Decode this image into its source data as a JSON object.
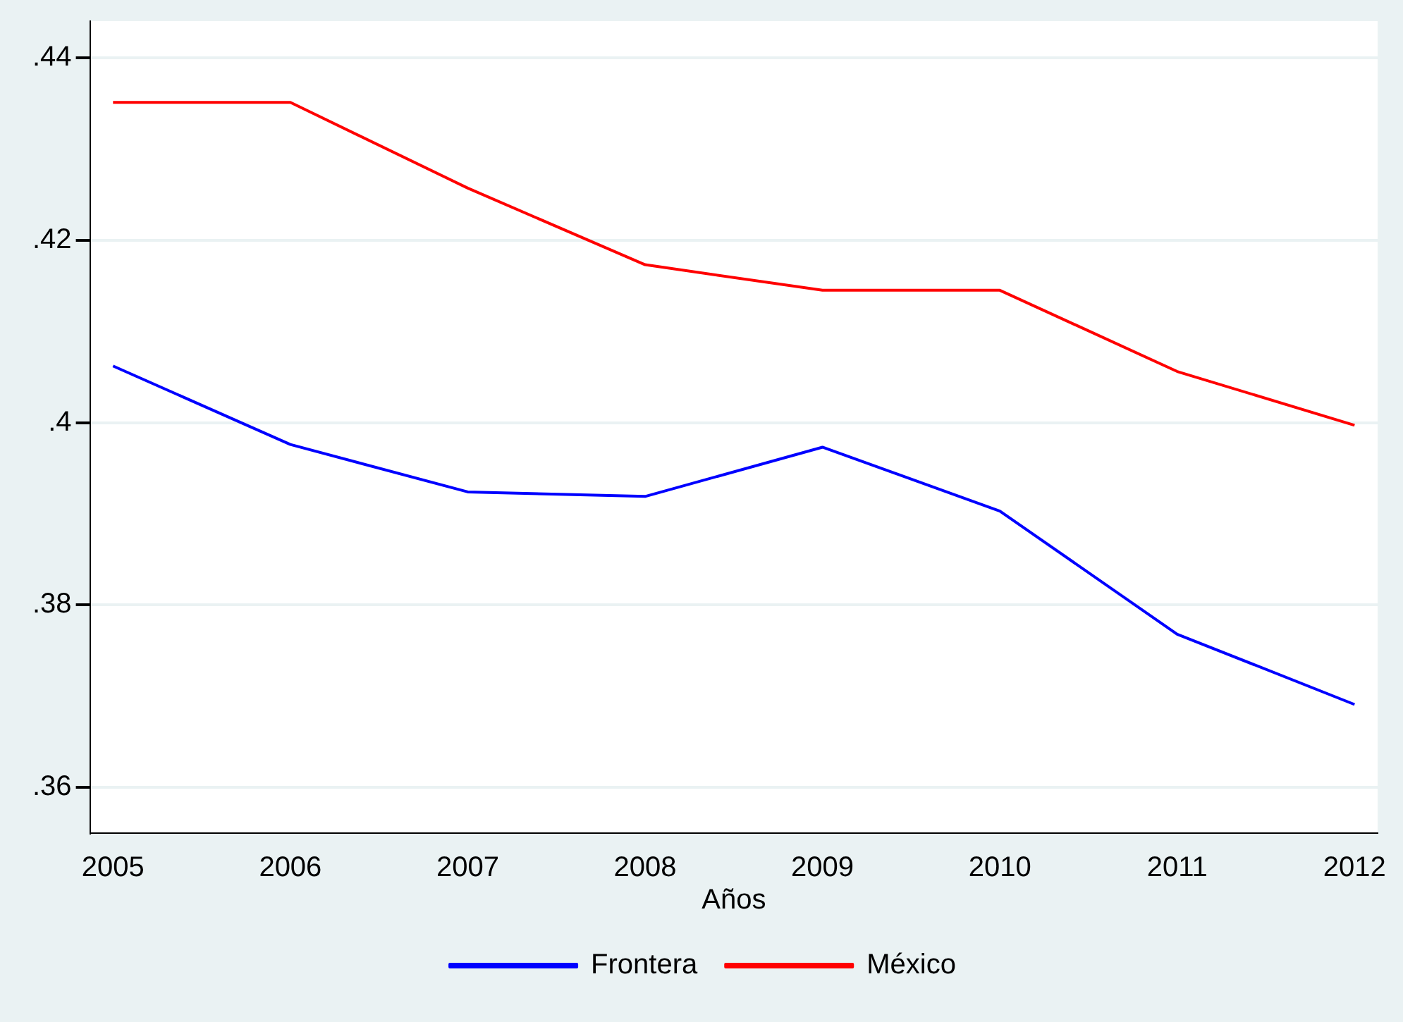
{
  "chart_data": {
    "type": "line",
    "xlabel": "Años",
    "x": [
      2005,
      2006,
      2007,
      2008,
      2009,
      2010,
      2011,
      2012
    ],
    "series": [
      {
        "name": "Frontera",
        "color": "#0000ff",
        "values": [
          0.4062,
          0.3976,
          0.3924,
          0.3919,
          0.3973,
          0.3903,
          0.3768,
          0.3691
        ]
      },
      {
        "name": "México",
        "color": "#ff0000",
        "values": [
          0.4351,
          0.4351,
          0.4257,
          0.4173,
          0.4145,
          0.4145,
          0.4056,
          0.3997
        ]
      }
    ],
    "xlim": [
      2004.87,
      2012.13
    ],
    "xticks": [
      2005,
      2006,
      2007,
      2008,
      2009,
      2010,
      2011,
      2012
    ],
    "ylim": [
      0.355,
      0.444
    ],
    "yticks": [
      {
        "value": 0.36,
        "label": ".36"
      },
      {
        "value": 0.38,
        "label": ".38"
      },
      {
        "value": 0.4,
        "label": ".4"
      },
      {
        "value": 0.42,
        "label": ".42"
      },
      {
        "value": 0.44,
        "label": ".44"
      }
    ],
    "grid": "y",
    "legend": "bottom",
    "marker": "none",
    "line_style": "solid"
  }
}
